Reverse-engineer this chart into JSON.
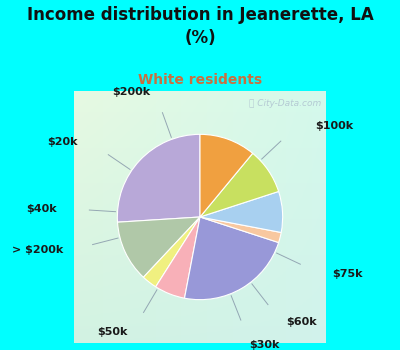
{
  "title": "Income distribution in Jeanerette, LA\n(%)",
  "subtitle": "White residents",
  "title_color": "#111111",
  "subtitle_color": "#c87040",
  "background_cyan": "#00ffff",
  "labels": [
    "$100k",
    "$75k",
    "$60k",
    "$30k",
    "$50k",
    "> $200k",
    "$40k",
    "$20k",
    "$200k"
  ],
  "values": [
    26,
    12,
    3,
    6,
    23,
    2,
    8,
    9,
    11
  ],
  "colors": [
    "#b8a8d8",
    "#b0c8a8",
    "#f0f080",
    "#f8b0b8",
    "#9898d8",
    "#f8c8a0",
    "#a8d0f0",
    "#c8e060",
    "#f0a040"
  ],
  "startangle": 90,
  "label_fontsize": 8,
  "watermark": "City-Data.com",
  "bg_colors": [
    "#c8f0e8",
    "#e8f8f0",
    "#d0f8f0",
    "#b0e8e0"
  ]
}
